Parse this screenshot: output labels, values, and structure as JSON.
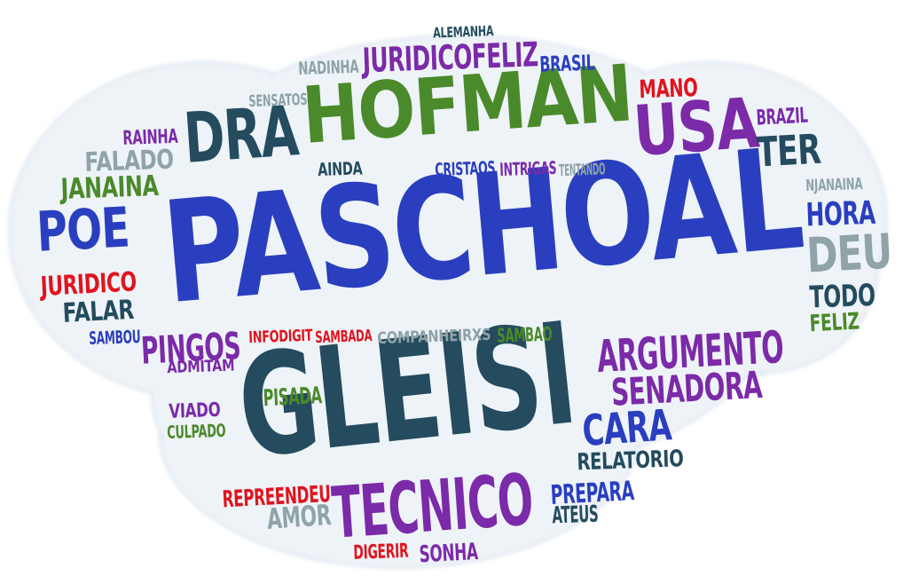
{
  "colors": {
    "blue": "#2a3fbf",
    "teal": "#244b5e",
    "green": "#4a8a2a",
    "purple": "#7b2aa8",
    "red": "#e0141e",
    "gray": "#8fa3a8",
    "cloud": "#eef3f8"
  },
  "words": [
    {
      "text": "PASCHOAL",
      "color": "blue"
    },
    {
      "text": "GLEISI",
      "color": "teal"
    },
    {
      "text": "HOFMAN",
      "color": "green"
    },
    {
      "text": "USA",
      "color": "purple"
    },
    {
      "text": "DRA",
      "color": "teal"
    },
    {
      "text": "TECNICO",
      "color": "purple"
    },
    {
      "text": "POE",
      "color": "blue"
    },
    {
      "text": "DEU",
      "color": "gray"
    },
    {
      "text": "ARGUMENTO",
      "color": "purple"
    },
    {
      "text": "JURIDICOFELIZ",
      "color": "purple"
    },
    {
      "text": "SENADORA",
      "color": "purple"
    },
    {
      "text": "CARA",
      "color": "blue"
    },
    {
      "text": "TER",
      "color": "teal"
    },
    {
      "text": "HORA",
      "color": "blue"
    },
    {
      "text": "TODO",
      "color": "teal"
    },
    {
      "text": "PINGOS",
      "color": "purple"
    },
    {
      "text": "JANAINA",
      "color": "green"
    },
    {
      "text": "FALADO",
      "color": "gray"
    },
    {
      "text": "JURIDICO",
      "color": "red"
    },
    {
      "text": "FALAR",
      "color": "teal"
    },
    {
      "text": "PREPARA",
      "color": "blue"
    },
    {
      "text": "REPREENDEU",
      "color": "red"
    },
    {
      "text": "RELATORIO",
      "color": "teal"
    },
    {
      "text": "AMOR",
      "color": "gray"
    },
    {
      "text": "ATEUS",
      "color": "teal"
    },
    {
      "text": "SONHA",
      "color": "purple"
    },
    {
      "text": "DIGERIR",
      "color": "red"
    },
    {
      "text": "MANO",
      "color": "red"
    },
    {
      "text": "BRASIL",
      "color": "blue"
    },
    {
      "text": "BRAZIL",
      "color": "purple"
    },
    {
      "text": "NADINHA",
      "color": "gray"
    },
    {
      "text": "ALEMANHA",
      "color": "teal"
    },
    {
      "text": "SENSATOS",
      "color": "gray"
    },
    {
      "text": "RAINHA",
      "color": "purple"
    },
    {
      "text": "AINDA",
      "color": "teal"
    },
    {
      "text": "CRISTAOS",
      "color": "blue"
    },
    {
      "text": "INTRIGAS",
      "color": "purple"
    },
    {
      "text": "TENTANDO",
      "color": "gray"
    },
    {
      "text": "NJANAINA",
      "color": "gray"
    },
    {
      "text": "FELIZ",
      "color": "green"
    },
    {
      "text": "SAMBOU",
      "color": "blue"
    },
    {
      "text": "INFODIGIT",
      "color": "red"
    },
    {
      "text": "SAMBADA",
      "color": "red"
    },
    {
      "text": "COMPANHEIRXS",
      "color": "gray"
    },
    {
      "text": "SAMBAO",
      "color": "green"
    },
    {
      "text": "ADMITAM",
      "color": "purple"
    },
    {
      "text": "PISADA",
      "color": "green"
    },
    {
      "text": "VIADO",
      "color": "purple"
    },
    {
      "text": "CULPADO",
      "color": "green"
    }
  ]
}
